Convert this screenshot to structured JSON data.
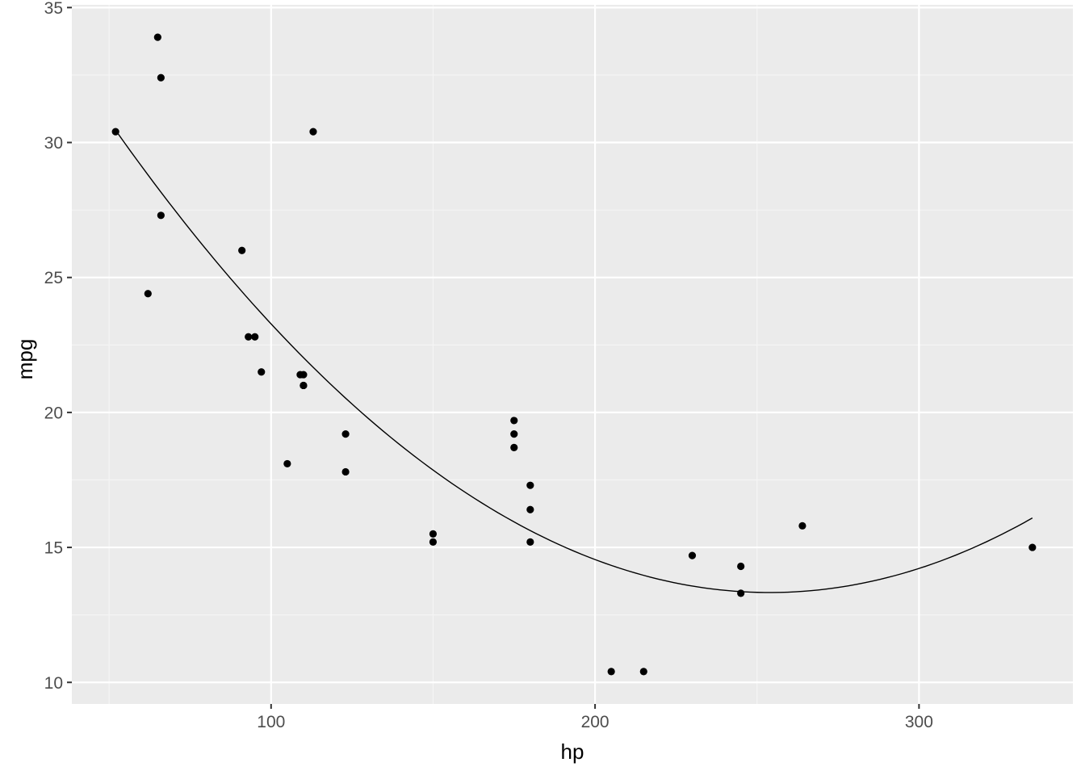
{
  "chart_data": {
    "type": "scatter",
    "title": "",
    "xlabel": "hp",
    "ylabel": "mpg",
    "xlim": [
      38.5,
      347.5
    ],
    "ylim": [
      9.2,
      35.1
    ],
    "x_ticks": [
      100,
      200,
      300
    ],
    "y_ticks": [
      10,
      15,
      20,
      25,
      30,
      35
    ],
    "x_tick_labels": [
      "100",
      "200",
      "300"
    ],
    "y_tick_labels": [
      "10",
      "15",
      "20",
      "25",
      "30",
      "35"
    ],
    "grid": true,
    "legend": "none",
    "colors": {
      "panel_background": "#ebebeb",
      "grid_major": "#ffffff",
      "grid_minor": "#f5f5f5",
      "points": "#000000",
      "fit_line": "#000000",
      "tick_text": "#4d4d4d",
      "tick_mark": "#333333"
    },
    "points": [
      {
        "x": 110,
        "y": 21.0
      },
      {
        "x": 110,
        "y": 21.0
      },
      {
        "x": 93,
        "y": 22.8
      },
      {
        "x": 110,
        "y": 21.4
      },
      {
        "x": 175,
        "y": 18.7
      },
      {
        "x": 105,
        "y": 18.1
      },
      {
        "x": 245,
        "y": 14.3
      },
      {
        "x": 62,
        "y": 24.4
      },
      {
        "x": 95,
        "y": 22.8
      },
      {
        "x": 123,
        "y": 19.2
      },
      {
        "x": 123,
        "y": 17.8
      },
      {
        "x": 180,
        "y": 16.4
      },
      {
        "x": 180,
        "y": 17.3
      },
      {
        "x": 180,
        "y": 15.2
      },
      {
        "x": 205,
        "y": 10.4
      },
      {
        "x": 215,
        "y": 10.4
      },
      {
        "x": 230,
        "y": 14.7
      },
      {
        "x": 66,
        "y": 32.4
      },
      {
        "x": 52,
        "y": 30.4
      },
      {
        "x": 65,
        "y": 33.9
      },
      {
        "x": 97,
        "y": 21.5
      },
      {
        "x": 150,
        "y": 15.5
      },
      {
        "x": 150,
        "y": 15.2
      },
      {
        "x": 245,
        "y": 13.3
      },
      {
        "x": 175,
        "y": 19.2
      },
      {
        "x": 66,
        "y": 27.3
      },
      {
        "x": 91,
        "y": 26.0
      },
      {
        "x": 113,
        "y": 30.4
      },
      {
        "x": 264,
        "y": 15.8
      },
      {
        "x": 175,
        "y": 19.7
      },
      {
        "x": 335,
        "y": 15.0
      },
      {
        "x": 109,
        "y": 21.4
      }
    ],
    "fit_line": {
      "type": "quadratic",
      "x_range": [
        52,
        335
      ],
      "coefficients": [
        40.41,
        -0.2133,
        0.00042
      ]
    }
  }
}
